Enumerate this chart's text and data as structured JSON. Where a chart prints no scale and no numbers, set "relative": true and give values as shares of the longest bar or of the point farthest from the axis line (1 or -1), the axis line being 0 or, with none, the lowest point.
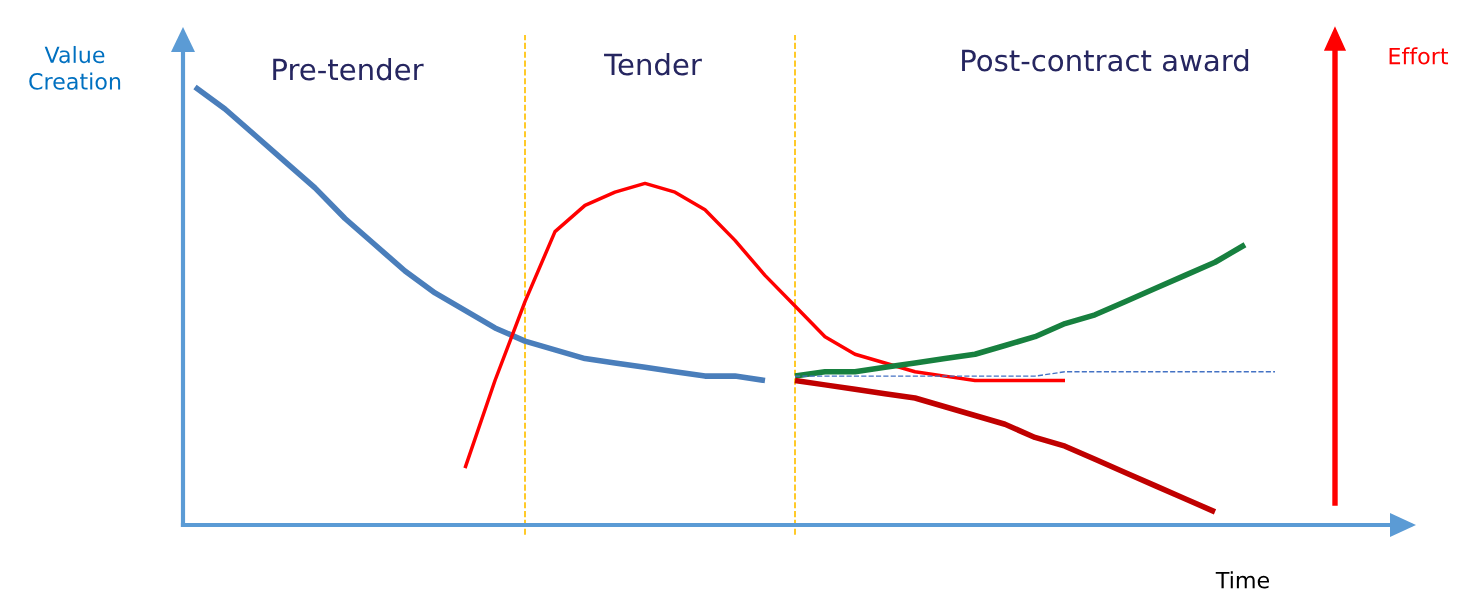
{
  "chart_data": {
    "type": "line",
    "relative": true,
    "xlabel": "Time",
    "ylabel": "Value Creation",
    "legend": false,
    "marker": "none",
    "categories": [
      null,
      null,
      null,
      null,
      null,
      null,
      null,
      null,
      null,
      null,
      null,
      null,
      null,
      null,
      null,
      null,
      null,
      null,
      null,
      null,
      null,
      null,
      null,
      null,
      null,
      null,
      null,
      null,
      null,
      null,
      null,
      null,
      null,
      null,
      null,
      null,
      null
    ],
    "series": [
      {
        "color": "#4a7ebb",
        "values": [
          1.0,
          0.95,
          0.89,
          0.83,
          0.77,
          0.7,
          0.64,
          0.58,
          0.53,
          0.49,
          0.45,
          0.42,
          0.4,
          0.38,
          0.37,
          0.36,
          0.35,
          0.34,
          0.34,
          0.33,
          null,
          null,
          null,
          null,
          null,
          null,
          null,
          null,
          null,
          null,
          null,
          null,
          null,
          null,
          null,
          null,
          null
        ]
      },
      {
        "name": "Effort",
        "color": "#ff0000",
        "values": [
          null,
          null,
          null,
          null,
          null,
          null,
          null,
          null,
          null,
          0.13,
          0.33,
          0.51,
          0.67,
          0.73,
          0.76,
          0.78,
          0.76,
          0.72,
          0.65,
          0.57,
          0.5,
          0.43,
          0.39,
          0.37,
          0.35,
          0.34,
          0.33,
          0.33,
          0.33,
          0.33,
          null,
          null,
          null,
          null,
          null,
          null,
          null
        ]
      },
      {
        "color": "#17803f",
        "values": [
          null,
          null,
          null,
          null,
          null,
          null,
          null,
          null,
          null,
          null,
          null,
          null,
          null,
          null,
          null,
          null,
          null,
          null,
          null,
          null,
          0.34,
          0.35,
          0.35,
          0.36,
          0.37,
          0.38,
          0.39,
          0.41,
          0.43,
          0.46,
          0.48,
          0.51,
          0.54,
          0.57,
          0.6,
          0.64,
          null
        ]
      },
      {
        "color": "#c00000",
        "values": [
          null,
          null,
          null,
          null,
          null,
          null,
          null,
          null,
          null,
          null,
          null,
          null,
          null,
          null,
          null,
          null,
          null,
          null,
          null,
          null,
          0.33,
          0.32,
          0.31,
          0.3,
          0.29,
          0.27,
          0.25,
          0.23,
          0.2,
          0.18,
          0.15,
          0.12,
          0.09,
          0.06,
          0.03,
          null,
          null
        ]
      },
      {
        "color": "#4472c4",
        "line_style": "dashed",
        "values": [
          null,
          null,
          null,
          null,
          null,
          null,
          null,
          null,
          null,
          null,
          null,
          null,
          null,
          null,
          null,
          null,
          null,
          null,
          null,
          null,
          0.34,
          0.34,
          0.34,
          0.34,
          0.34,
          0.34,
          0.34,
          0.34,
          0.34,
          0.35,
          0.35,
          0.35,
          0.35,
          0.35,
          0.35,
          0.35,
          0.35
        ]
      }
    ],
    "annotations": [
      "Pre-tender",
      "Tender",
      "Post-contract award"
    ]
  }
}
